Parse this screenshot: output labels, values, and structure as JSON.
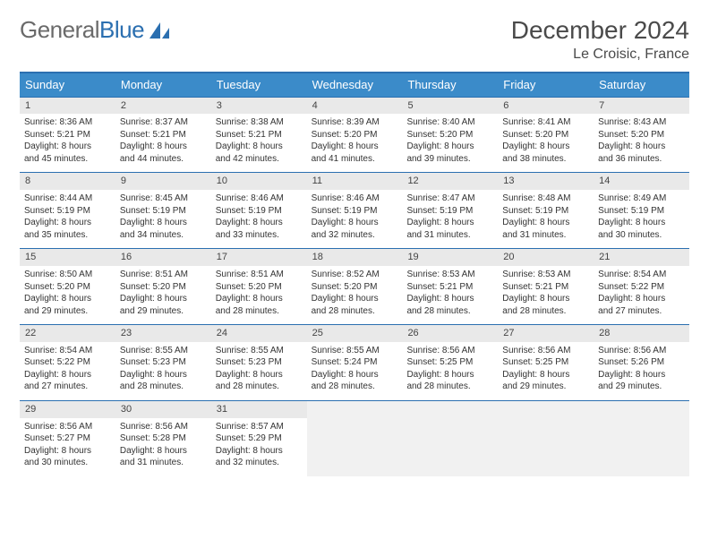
{
  "logo": {
    "text1": "General",
    "text2": "Blue"
  },
  "title": "December 2024",
  "location": "Le Croisic, France",
  "colors": {
    "header_bg": "#3b8bc9",
    "border": "#2b6fb0",
    "daynum_bg": "#e9e9e9",
    "empty_bg": "#f1f1f1"
  },
  "weekdays": [
    "Sunday",
    "Monday",
    "Tuesday",
    "Wednesday",
    "Thursday",
    "Friday",
    "Saturday"
  ],
  "weeks": [
    [
      {
        "n": "1",
        "sr": "Sunrise: 8:36 AM",
        "ss": "Sunset: 5:21 PM",
        "d1": "Daylight: 8 hours",
        "d2": "and 45 minutes."
      },
      {
        "n": "2",
        "sr": "Sunrise: 8:37 AM",
        "ss": "Sunset: 5:21 PM",
        "d1": "Daylight: 8 hours",
        "d2": "and 44 minutes."
      },
      {
        "n": "3",
        "sr": "Sunrise: 8:38 AM",
        "ss": "Sunset: 5:21 PM",
        "d1": "Daylight: 8 hours",
        "d2": "and 42 minutes."
      },
      {
        "n": "4",
        "sr": "Sunrise: 8:39 AM",
        "ss": "Sunset: 5:20 PM",
        "d1": "Daylight: 8 hours",
        "d2": "and 41 minutes."
      },
      {
        "n": "5",
        "sr": "Sunrise: 8:40 AM",
        "ss": "Sunset: 5:20 PM",
        "d1": "Daylight: 8 hours",
        "d2": "and 39 minutes."
      },
      {
        "n": "6",
        "sr": "Sunrise: 8:41 AM",
        "ss": "Sunset: 5:20 PM",
        "d1": "Daylight: 8 hours",
        "d2": "and 38 minutes."
      },
      {
        "n": "7",
        "sr": "Sunrise: 8:43 AM",
        "ss": "Sunset: 5:20 PM",
        "d1": "Daylight: 8 hours",
        "d2": "and 36 minutes."
      }
    ],
    [
      {
        "n": "8",
        "sr": "Sunrise: 8:44 AM",
        "ss": "Sunset: 5:19 PM",
        "d1": "Daylight: 8 hours",
        "d2": "and 35 minutes."
      },
      {
        "n": "9",
        "sr": "Sunrise: 8:45 AM",
        "ss": "Sunset: 5:19 PM",
        "d1": "Daylight: 8 hours",
        "d2": "and 34 minutes."
      },
      {
        "n": "10",
        "sr": "Sunrise: 8:46 AM",
        "ss": "Sunset: 5:19 PM",
        "d1": "Daylight: 8 hours",
        "d2": "and 33 minutes."
      },
      {
        "n": "11",
        "sr": "Sunrise: 8:46 AM",
        "ss": "Sunset: 5:19 PM",
        "d1": "Daylight: 8 hours",
        "d2": "and 32 minutes."
      },
      {
        "n": "12",
        "sr": "Sunrise: 8:47 AM",
        "ss": "Sunset: 5:19 PM",
        "d1": "Daylight: 8 hours",
        "d2": "and 31 minutes."
      },
      {
        "n": "13",
        "sr": "Sunrise: 8:48 AM",
        "ss": "Sunset: 5:19 PM",
        "d1": "Daylight: 8 hours",
        "d2": "and 31 minutes."
      },
      {
        "n": "14",
        "sr": "Sunrise: 8:49 AM",
        "ss": "Sunset: 5:19 PM",
        "d1": "Daylight: 8 hours",
        "d2": "and 30 minutes."
      }
    ],
    [
      {
        "n": "15",
        "sr": "Sunrise: 8:50 AM",
        "ss": "Sunset: 5:20 PM",
        "d1": "Daylight: 8 hours",
        "d2": "and 29 minutes."
      },
      {
        "n": "16",
        "sr": "Sunrise: 8:51 AM",
        "ss": "Sunset: 5:20 PM",
        "d1": "Daylight: 8 hours",
        "d2": "and 29 minutes."
      },
      {
        "n": "17",
        "sr": "Sunrise: 8:51 AM",
        "ss": "Sunset: 5:20 PM",
        "d1": "Daylight: 8 hours",
        "d2": "and 28 minutes."
      },
      {
        "n": "18",
        "sr": "Sunrise: 8:52 AM",
        "ss": "Sunset: 5:20 PM",
        "d1": "Daylight: 8 hours",
        "d2": "and 28 minutes."
      },
      {
        "n": "19",
        "sr": "Sunrise: 8:53 AM",
        "ss": "Sunset: 5:21 PM",
        "d1": "Daylight: 8 hours",
        "d2": "and 28 minutes."
      },
      {
        "n": "20",
        "sr": "Sunrise: 8:53 AM",
        "ss": "Sunset: 5:21 PM",
        "d1": "Daylight: 8 hours",
        "d2": "and 28 minutes."
      },
      {
        "n": "21",
        "sr": "Sunrise: 8:54 AM",
        "ss": "Sunset: 5:22 PM",
        "d1": "Daylight: 8 hours",
        "d2": "and 27 minutes."
      }
    ],
    [
      {
        "n": "22",
        "sr": "Sunrise: 8:54 AM",
        "ss": "Sunset: 5:22 PM",
        "d1": "Daylight: 8 hours",
        "d2": "and 27 minutes."
      },
      {
        "n": "23",
        "sr": "Sunrise: 8:55 AM",
        "ss": "Sunset: 5:23 PM",
        "d1": "Daylight: 8 hours",
        "d2": "and 28 minutes."
      },
      {
        "n": "24",
        "sr": "Sunrise: 8:55 AM",
        "ss": "Sunset: 5:23 PM",
        "d1": "Daylight: 8 hours",
        "d2": "and 28 minutes."
      },
      {
        "n": "25",
        "sr": "Sunrise: 8:55 AM",
        "ss": "Sunset: 5:24 PM",
        "d1": "Daylight: 8 hours",
        "d2": "and 28 minutes."
      },
      {
        "n": "26",
        "sr": "Sunrise: 8:56 AM",
        "ss": "Sunset: 5:25 PM",
        "d1": "Daylight: 8 hours",
        "d2": "and 28 minutes."
      },
      {
        "n": "27",
        "sr": "Sunrise: 8:56 AM",
        "ss": "Sunset: 5:25 PM",
        "d1": "Daylight: 8 hours",
        "d2": "and 29 minutes."
      },
      {
        "n": "28",
        "sr": "Sunrise: 8:56 AM",
        "ss": "Sunset: 5:26 PM",
        "d1": "Daylight: 8 hours",
        "d2": "and 29 minutes."
      }
    ],
    [
      {
        "n": "29",
        "sr": "Sunrise: 8:56 AM",
        "ss": "Sunset: 5:27 PM",
        "d1": "Daylight: 8 hours",
        "d2": "and 30 minutes."
      },
      {
        "n": "30",
        "sr": "Sunrise: 8:56 AM",
        "ss": "Sunset: 5:28 PM",
        "d1": "Daylight: 8 hours",
        "d2": "and 31 minutes."
      },
      {
        "n": "31",
        "sr": "Sunrise: 8:57 AM",
        "ss": "Sunset: 5:29 PM",
        "d1": "Daylight: 8 hours",
        "d2": "and 32 minutes."
      },
      null,
      null,
      null,
      null
    ]
  ]
}
